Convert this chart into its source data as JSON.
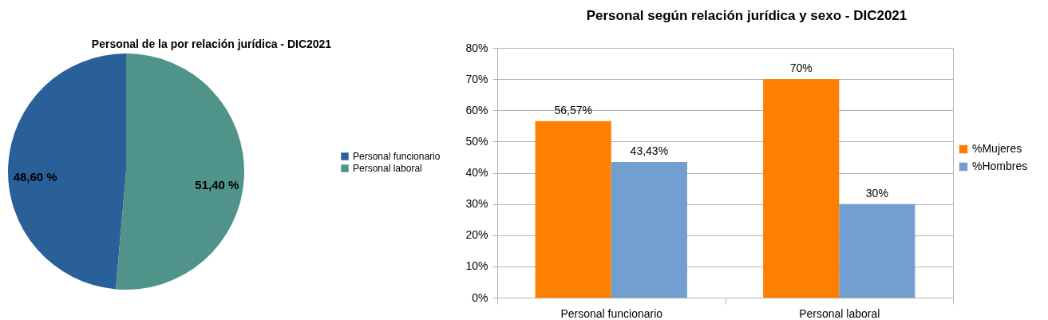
{
  "chart_data": [
    {
      "type": "pie",
      "title": "Personal de la por relación jurídica - DIC2021",
      "categories": [
        "Personal funcionario",
        "Personal laboral"
      ],
      "values": [
        48.6,
        51.4
      ],
      "colors": [
        "#2a6099",
        "#50938a"
      ],
      "value_labels": [
        "48,60 %",
        "51,40 %"
      ],
      "legend": "right"
    },
    {
      "type": "bar",
      "title": "Personal según relación jurídica y sexo - DIC2021",
      "categories": [
        "Personal funcionario",
        "Personal laboral"
      ],
      "series": [
        {
          "name": "%Mujeres",
          "color": "#ff8000",
          "values": [
            56.57,
            70
          ],
          "value_labels": [
            "56,57%",
            "70%"
          ]
        },
        {
          "name": "%Hombres",
          "color": "#729fcf",
          "values": [
            43.43,
            30
          ],
          "value_labels": [
            "43,43%",
            "30%"
          ]
        }
      ],
      "ylim": [
        0,
        80
      ],
      "yticks": [
        {
          "value": 0,
          "label": "0%"
        },
        {
          "value": 10,
          "label": "10%"
        },
        {
          "value": 20,
          "label": "20%"
        },
        {
          "value": 30,
          "label": "30%"
        },
        {
          "value": 40,
          "label": "40%"
        },
        {
          "value": 50,
          "label": "50%"
        },
        {
          "value": 60,
          "label": "60%"
        },
        {
          "value": 70,
          "label": "70%"
        },
        {
          "value": 80,
          "label": "80%"
        }
      ],
      "grid": "y",
      "legend": "right"
    }
  ]
}
